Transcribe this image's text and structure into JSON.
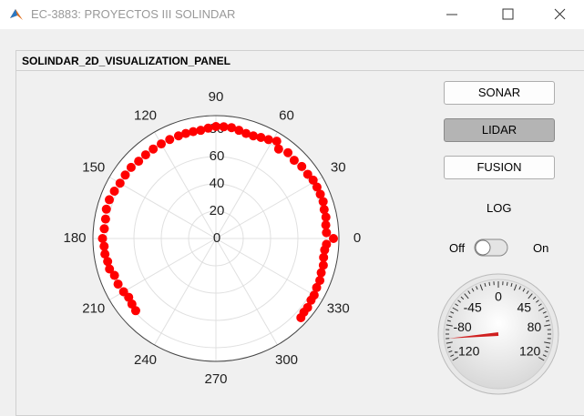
{
  "window": {
    "title": "EC-3883: PROYECTOS III SOLINDAR"
  },
  "panel": {
    "title": "SOLINDAR_2D_VISUALIZATION_PANEL"
  },
  "buttons": [
    "SONAR",
    "LIDAR",
    "FUSION"
  ],
  "log_label": "LOG",
  "switch": {
    "off": "Off",
    "on": "On"
  },
  "gauge": {
    "ticks": [
      -120,
      -80,
      -45,
      0,
      45,
      80,
      120
    ],
    "lim": [
      -120,
      120
    ],
    "value": -95
  },
  "chart_data": {
    "type": "polar-scatter",
    "color": "#ff0000",
    "theta": [
      -43,
      -40,
      -37,
      -33,
      -30,
      -26,
      -22,
      -18,
      -14,
      -10,
      -6,
      -3,
      0,
      3,
      7,
      11,
      15,
      19,
      23,
      27,
      31,
      35,
      40,
      45,
      50,
      55,
      58,
      62,
      66,
      70,
      74,
      78,
      82,
      86,
      90,
      94,
      98,
      102,
      106,
      110,
      115,
      120,
      125,
      130,
      135,
      140,
      145,
      150,
      155,
      160,
      165,
      170,
      175,
      180,
      184,
      188,
      192,
      196,
      200,
      205,
      210,
      214,
      218,
      222
    ],
    "r": [
      85,
      84,
      84,
      83,
      83,
      82,
      82,
      81,
      81,
      80,
      80,
      81,
      86,
      81,
      81,
      82,
      82,
      83,
      83,
      83,
      83,
      82,
      82,
      81,
      82,
      80,
      84,
      82,
      81,
      80,
      80,
      81,
      82,
      82,
      82,
      81,
      80,
      80,
      80,
      80,
      80,
      80,
      80,
      80,
      80,
      81,
      81,
      81,
      82,
      83,
      83,
      82,
      82,
      83,
      82,
      82,
      81,
      81,
      79,
      79,
      78,
      77,
      78,
      79
    ],
    "rlim": [
      0,
      90
    ],
    "rticks": [
      0,
      20,
      40,
      60,
      80
    ],
    "thetaticks": [
      0,
      30,
      60,
      90,
      120,
      150,
      180,
      210,
      240,
      270,
      300,
      330
    ],
    "grid": true
  }
}
